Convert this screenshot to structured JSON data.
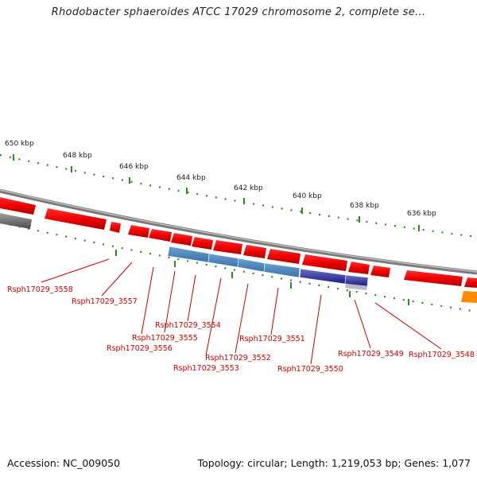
{
  "title": "Rhodobacter sphaeroides ATCC 17029 chromosome 2, complete se...",
  "footer": {
    "accession": "Accession: NC_009050",
    "summary": "Topology: circular; Length: 1,219,053 bp; Genes: 1,077"
  },
  "ticks": [
    "650 kbp",
    "648 kbp",
    "646 kbp",
    "644 kbp",
    "642 kbp",
    "640 kbp",
    "638 kbp",
    "636 kbp"
  ],
  "gene_labels": [
    "Rsph17029_3558",
    "Rsph17029_3557",
    "Rsph17029_3556",
    "Rsph17029_3555",
    "Rsph17029_3554",
    "Rsph17029_3553",
    "Rsph17029_3552",
    "Rsph17029_3551",
    "Rsph17029_3550",
    "Rsph17029_3549",
    "Rsph17029_3548"
  ],
  "colors": {
    "forward_gene": "#ee0000",
    "selected_gene": "#4682b4",
    "dark_gene": "#1a1a80",
    "other_gene": "#ff8c00",
    "backbone": "#808080",
    "tick": "#2e8b22",
    "label": "#cc0000"
  }
}
